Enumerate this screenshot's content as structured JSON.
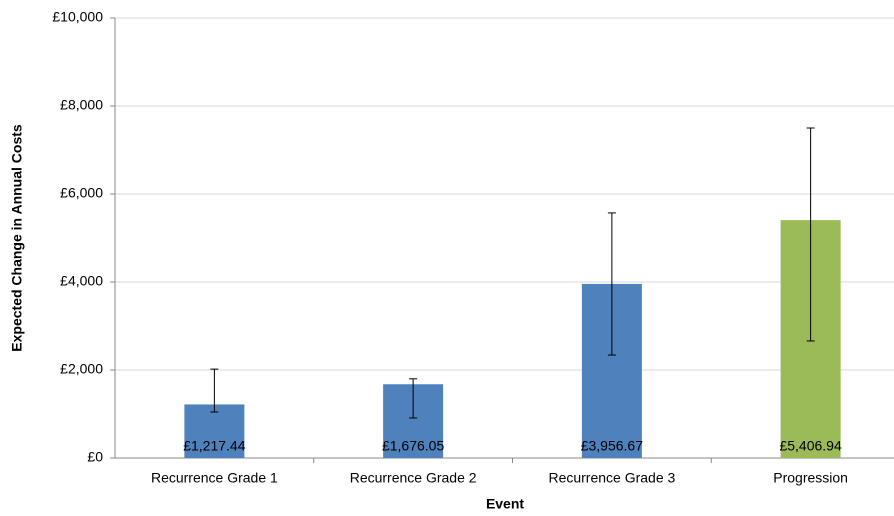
{
  "chart_data": {
    "type": "bar",
    "x_label": "Event",
    "y_label": "Expected Change in Annual Costs",
    "categories": [
      "Recurrence Grade 1",
      "Recurrence Grade 2",
      "Recurrence Grade 3",
      "Progression"
    ],
    "values": [
      1217.44,
      1676.05,
      3956.67,
      5406.94
    ],
    "value_labels": [
      "£1,217.44",
      "£1,676.05",
      "£3,956.67",
      "£5,406.94"
    ],
    "colors": [
      "#4f81bd",
      "#4f81bd",
      "#4f81bd",
      "#9bbb59"
    ],
    "error_lower": [
      1045,
      910,
      2340,
      2660
    ],
    "error_upper": [
      2020,
      1800,
      5570,
      7500
    ],
    "ylim": [
      0,
      10000
    ],
    "yticks": [
      {
        "value": 0,
        "label": "£0"
      },
      {
        "value": 2000,
        "label": "£2,000"
      },
      {
        "value": 4000,
        "label": "£4,000"
      },
      {
        "value": 6000,
        "label": "£6,000"
      },
      {
        "value": 8000,
        "label": "£8,000"
      },
      {
        "value": 10000,
        "label": "£10,000"
      }
    ],
    "grid": true
  }
}
